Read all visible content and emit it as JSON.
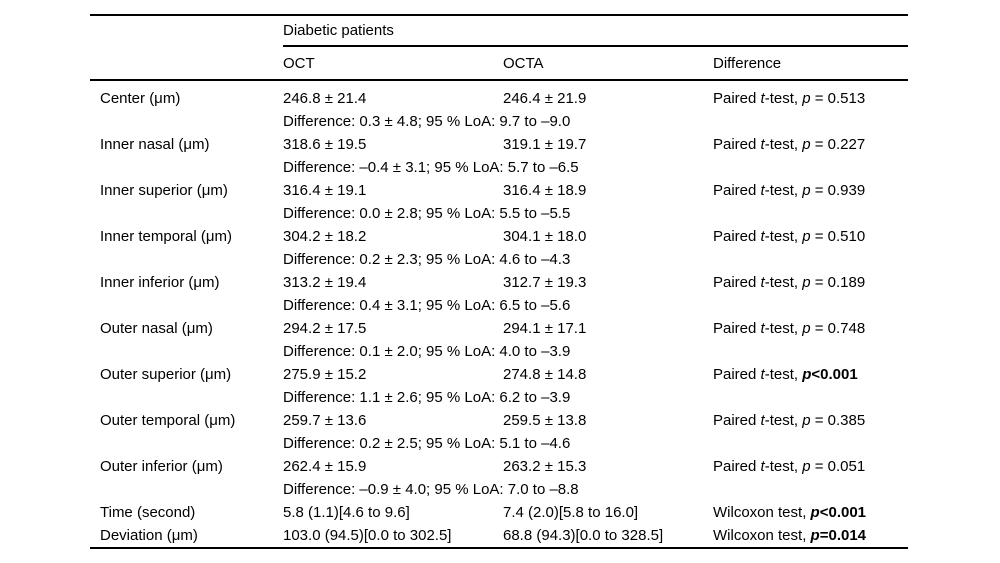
{
  "table": {
    "spanner": "Diabetic patients",
    "columns": [
      "OCT",
      "OCTA",
      "Difference"
    ],
    "rows": [
      {
        "label": "Center (μm)",
        "oct": "246.8 ± 21.4",
        "octa": "246.4 ± 21.9",
        "test": "Paired t-test",
        "p": "p = 0.513",
        "p_bold": false,
        "note": "Difference: 0.3 ± 4.8; 95 % LoA: 9.7 to –9.0"
      },
      {
        "label": "Inner nasal (μm)",
        "oct": "318.6 ± 19.5",
        "octa": "319.1 ± 19.7",
        "test": "Paired t-test",
        "p": "p = 0.227",
        "p_bold": false,
        "note": "Difference: –0.4 ± 3.1; 95 % LoA: 5.7 to –6.5"
      },
      {
        "label": "Inner superior (μm)",
        "oct": "316.4 ± 19.1",
        "octa": "316.4 ± 18.9",
        "test": "Paired t-test",
        "p": "p = 0.939",
        "p_bold": false,
        "note": "Difference: 0.0 ± 2.8; 95 % LoA: 5.5 to –5.5"
      },
      {
        "label": "Inner temporal (μm)",
        "oct": "304.2 ± 18.2",
        "octa": "304.1 ± 18.0",
        "test": "Paired t-test",
        "p": "p = 0.510",
        "p_bold": false,
        "note": "Difference: 0.2 ± 2.3; 95 % LoA: 4.6 to –4.3"
      },
      {
        "label": "Inner inferior (μm)",
        "oct": "313.2 ± 19.4",
        "octa": "312.7 ± 19.3",
        "test": "Paired t-test",
        "p": "p = 0.189",
        "p_bold": false,
        "note": "Difference: 0.4 ± 3.1; 95 % LoA: 6.5 to –5.6"
      },
      {
        "label": "Outer nasal (μm)",
        "oct": "294.2 ± 17.5",
        "octa": "294.1 ± 17.1",
        "test": "Paired t-test",
        "p": "p = 0.748",
        "p_bold": false,
        "note": "Difference: 0.1 ± 2.0; 95 % LoA: 4.0 to –3.9"
      },
      {
        "label": "Outer superior (μm)",
        "oct": "275.9 ± 15.2",
        "octa": "274.8 ± 14.8",
        "test": "Paired t-test",
        "p": "p<0.001",
        "p_bold": true,
        "note": "Difference: 1.1 ± 2.6; 95 % LoA: 6.2 to –3.9"
      },
      {
        "label": "Outer temporal (μm)",
        "oct": "259.7 ± 13.6",
        "octa": "259.5 ± 13.8",
        "test": "Paired t-test",
        "p": "p = 0.385",
        "p_bold": false,
        "note": "Difference: 0.2 ± 2.5; 95 % LoA: 5.1 to –4.6"
      },
      {
        "label": "Outer inferior (μm)",
        "oct": "262.4 ± 15.9",
        "octa": "263.2 ± 15.3",
        "test": "Paired t-test",
        "p": "p = 0.051",
        "p_bold": false,
        "note": "Difference: –0.9 ± 4.0; 95 % LoA: 7.0 to –8.8"
      },
      {
        "label": "Time (second)",
        "oct": "5.8 (1.1)[4.6 to 9.6]",
        "octa": "7.4 (2.0)[5.8 to 16.0]",
        "test": "Wilcoxon test",
        "p": "p<0.001",
        "p_bold": true,
        "note": null
      },
      {
        "label": "Deviation (μm)",
        "oct": "103.0 (94.5)[0.0 to 302.5]",
        "octa": "68.8 (94.3)[0.0 to 328.5]",
        "test": "Wilcoxon test",
        "p": "p=0.014",
        "p_bold": true,
        "note": null
      }
    ]
  }
}
